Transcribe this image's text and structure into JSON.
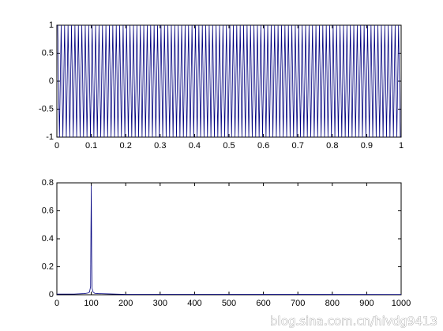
{
  "chart_data": [
    {
      "type": "line",
      "color": "#00007f",
      "x": [
        0.0025,
        0.0075,
        0.0125,
        0.0175,
        0.0225,
        0.0275,
        0.0325,
        0.0375,
        0.0425,
        0.0475,
        0.0525,
        0.0575,
        0.0625,
        0.0675,
        0.0725,
        0.0775,
        0.0825,
        0.0875,
        0.0925,
        0.0975,
        0.1025,
        0.1075,
        0.1125,
        0.1175,
        0.1225,
        0.1275,
        0.1325,
        0.1375,
        0.1425,
        0.1475,
        0.1525,
        0.1575,
        0.1625,
        0.1675,
        0.1725,
        0.1775,
        0.1825,
        0.1875,
        0.1925,
        0.1975,
        0.2025,
        0.2075,
        0.2125,
        0.2175,
        0.2225,
        0.2275,
        0.2325,
        0.2375,
        0.2425,
        0.2475,
        0.2525,
        0.2575,
        0.2625,
        0.2675,
        0.2725,
        0.2775,
        0.2825,
        0.2875,
        0.2925,
        0.2975,
        0.3025,
        0.3075,
        0.3125,
        0.3175,
        0.3225,
        0.3275,
        0.3325,
        0.3375,
        0.3425,
        0.3475,
        0.3525,
        0.3575,
        0.3625,
        0.3675,
        0.3725,
        0.3775,
        0.3825,
        0.3875,
        0.3925,
        0.3975,
        0.4025,
        0.4075,
        0.4125,
        0.4175,
        0.4225,
        0.4275,
        0.4325,
        0.4375,
        0.4425,
        0.4475,
        0.4525,
        0.4575,
        0.4625,
        0.4675,
        0.4725,
        0.4775,
        0.4825,
        0.4875,
        0.4925,
        0.4975,
        0.5025,
        0.5075,
        0.5125,
        0.5175,
        0.5225,
        0.5275,
        0.5325,
        0.5375,
        0.5425,
        0.5475,
        0.5525,
        0.5575,
        0.5625,
        0.5675,
        0.5725,
        0.5775,
        0.5825,
        0.5875,
        0.5925,
        0.5975,
        0.6025,
        0.6075,
        0.6125,
        0.6175,
        0.6225,
        0.6275,
        0.6325,
        0.6375,
        0.6425,
        0.6475,
        0.6525,
        0.6575,
        0.6625,
        0.6675,
        0.6725,
        0.6775,
        0.6825,
        0.6875,
        0.6925,
        0.6975,
        0.7025,
        0.7075,
        0.7125,
        0.7175,
        0.7225,
        0.7275,
        0.7325,
        0.7375,
        0.7425,
        0.7475,
        0.7525,
        0.7575,
        0.7625,
        0.7675,
        0.7725,
        0.7775,
        0.7825,
        0.7875,
        0.7925,
        0.7975,
        0.8025,
        0.8075,
        0.8125,
        0.8175,
        0.8225,
        0.8275,
        0.8325,
        0.8375,
        0.8425,
        0.8475,
        0.8525,
        0.8575,
        0.8625,
        0.8675,
        0.8725,
        0.8775,
        0.8825,
        0.8875,
        0.8925,
        0.8975,
        0.9025,
        0.9075,
        0.9125,
        0.9175,
        0.9225,
        0.9275,
        0.9325,
        0.9375,
        0.9425,
        0.9475,
        0.9525,
        0.9575,
        0.9625,
        0.9675,
        0.9725,
        0.9775,
        0.9825,
        0.9875,
        0.9925,
        0.9975
      ],
      "values": [
        1,
        -1,
        1,
        -1,
        1,
        -1,
        1,
        -1,
        1,
        -1,
        1,
        -1,
        1,
        -1,
        1,
        -1,
        1,
        -1,
        1,
        -1,
        1,
        -1,
        1,
        -1,
        1,
        -1,
        1,
        -1,
        1,
        -1,
        1,
        -1,
        1,
        -1,
        1,
        -1,
        1,
        -1,
        1,
        -1,
        1,
        -1,
        1,
        -1,
        1,
        -1,
        1,
        -1,
        1,
        -1,
        1,
        -1,
        1,
        -1,
        1,
        -1,
        1,
        -1,
        1,
        -1,
        1,
        -1,
        1,
        -1,
        1,
        -1,
        1,
        -1,
        1,
        -1,
        1,
        -1,
        1,
        -1,
        1,
        -1,
        1,
        -1,
        1,
        -1,
        1,
        -1,
        1,
        -1,
        1,
        -1,
        1,
        -1,
        1,
        -1,
        1,
        -1,
        1,
        -1,
        1,
        -1,
        1,
        -1,
        1,
        -1,
        1,
        -1,
        1,
        -1,
        1,
        -1,
        1,
        -1,
        1,
        -1,
        1,
        -1,
        1,
        -1,
        1,
        -1,
        1,
        -1,
        1,
        -1,
        1,
        -1,
        1,
        -1,
        1,
        -1,
        1,
        -1,
        1,
        -1,
        1,
        -1,
        1,
        -1,
        1,
        -1,
        1,
        -1,
        1,
        -1,
        1,
        -1,
        1,
        -1,
        1,
        -1,
        1,
        -1,
        1,
        -1,
        1,
        -1,
        1,
        -1,
        1,
        -1,
        1,
        -1,
        1,
        -1,
        1,
        -1,
        1,
        -1,
        1,
        -1,
        1,
        -1,
        1,
        -1,
        1,
        -1,
        1,
        -1,
        1,
        -1,
        1,
        -1,
        1,
        -1,
        1,
        -1,
        1,
        -1,
        1,
        -1,
        1,
        -1,
        1,
        -1,
        1,
        -1,
        1,
        -1,
        1,
        -1,
        1,
        -1,
        1,
        -1
      ],
      "xlim": [
        0,
        1
      ],
      "ylim": [
        -1,
        1
      ],
      "xticks": [
        0,
        0.1,
        0.2,
        0.3,
        0.4,
        0.5,
        0.6,
        0.7,
        0.8,
        0.9,
        1
      ],
      "yticks": [
        -1,
        -0.5,
        0,
        0.5,
        1
      ]
    },
    {
      "type": "line",
      "color": "#00007f",
      "x": [
        0,
        50,
        80,
        90,
        95,
        98,
        99,
        100,
        101,
        102,
        105,
        110,
        120,
        150,
        200,
        1000
      ],
      "values": [
        0.005,
        0.005,
        0.008,
        0.012,
        0.02,
        0.06,
        0.48,
        0.78,
        0.3,
        0.05,
        0.02,
        0.01,
        0.008,
        0.006,
        0.003,
        0.002
      ],
      "xlim": [
        0,
        1000
      ],
      "ylim": [
        0,
        0.8
      ],
      "xticks": [
        0,
        100,
        200,
        300,
        400,
        500,
        600,
        700,
        800,
        900,
        1000
      ],
      "yticks": [
        0,
        0.2,
        0.4,
        0.6,
        0.8
      ]
    }
  ],
  "watermark": "blog.sina.com.cn/hivdg9413"
}
